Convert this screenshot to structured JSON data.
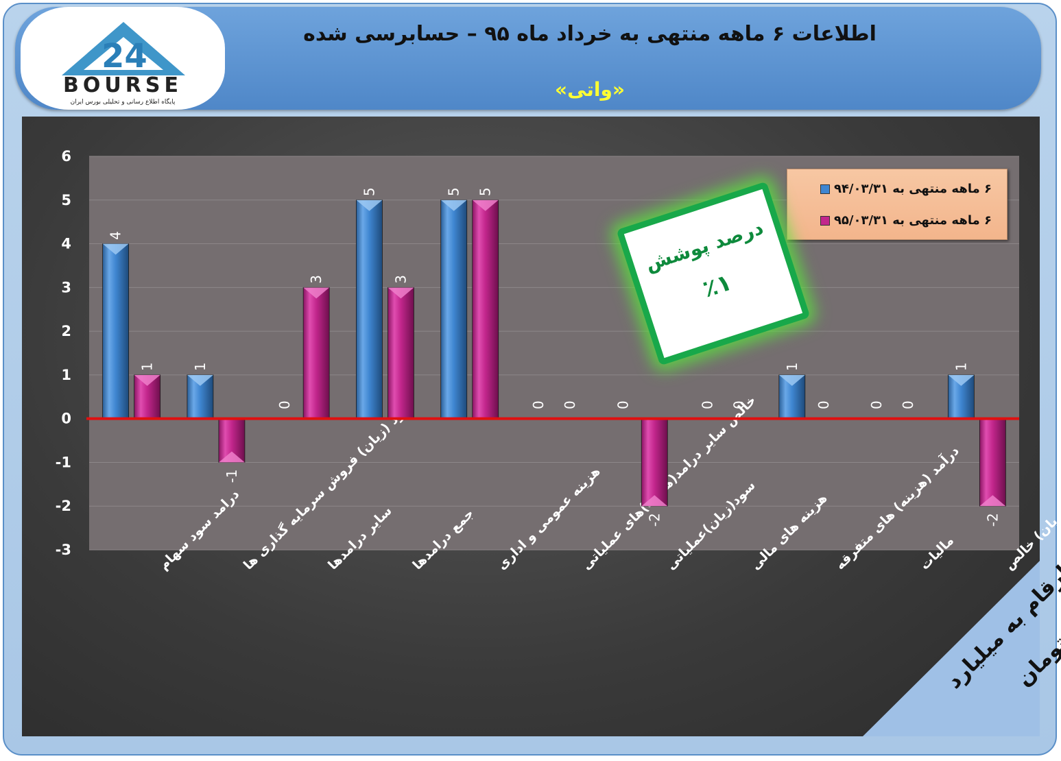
{
  "header": {
    "title": "اطلاعات ۶  ماهه منتهی به خرداد ماه ۹۵ – حسابرسی شده",
    "company": "«واتی»"
  },
  "logo": {
    "brand": "BOURSE",
    "tagline": "پایگاه اطلاع رسانی و تحلیلی بورس ایران"
  },
  "badge": {
    "title": "درصد پوشش",
    "value": "٪۱"
  },
  "units_label": "ارقام به میلیارد تومان",
  "colors": {
    "series1": "#3f86d1",
    "series2": "#c2268c",
    "zero_line": "#e01010",
    "badge_border": "#18a84a"
  },
  "chart_data": {
    "type": "bar",
    "ylim": [
      -3,
      6
    ],
    "yticks": [
      "6",
      "5",
      "4",
      "3",
      "2",
      "1",
      "0",
      "-1",
      "-2",
      "-3"
    ],
    "grid": true,
    "legend_position": "top-right",
    "categories": [
      "درامد سود سهام",
      "سود (زیان) فروش سرمایه گذاری ها",
      "سایر درامدها",
      "جمع درامدها",
      "هزینه عمومی و اداری",
      "خالص سایر درامد(هزینه)های عملیاتی",
      "سود(زیان)عملیاتی",
      "هزینه های مالی",
      "درآمد (هزینه) های متفرقه",
      "مالیات",
      "سود(زیان) خالص"
    ],
    "series": [
      {
        "name": "۶ ماهه منتهی به ۹۴/۰۳/۳۱",
        "values": [
          4,
          1,
          0,
          5,
          5,
          0,
          0,
          0,
          1,
          0,
          1
        ]
      },
      {
        "name": "۶ ماهه منتهی به ۹۵/۰۳/۳۱",
        "values": [
          1,
          -1,
          3,
          3,
          5,
          0,
          -2,
          0,
          0,
          0,
          -2
        ]
      }
    ],
    "labels": [
      [
        "4",
        "1",
        "0",
        "5",
        "5",
        "0",
        "0",
        "0",
        "1",
        "0",
        "1"
      ],
      [
        "1",
        "-1",
        "3",
        "3",
        "5",
        "0",
        "-2",
        "0",
        "0",
        "0",
        "-2"
      ]
    ]
  }
}
